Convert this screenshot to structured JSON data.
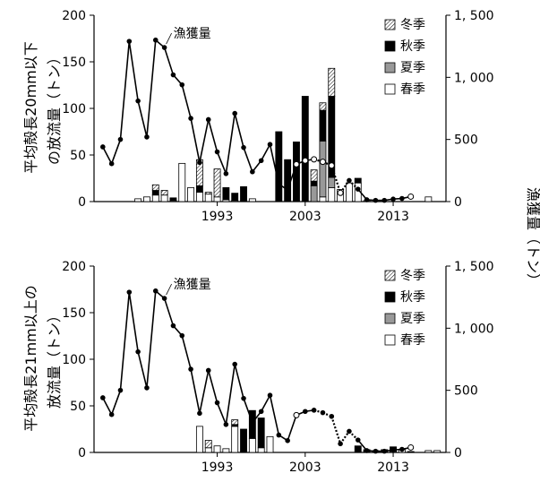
{
  "right_axis_label": "漁獲量（トン）",
  "legend": {
    "winter": "冬季",
    "autumn": "秋季",
    "summer": "夏季",
    "spring": "春季"
  },
  "colors": {
    "winter": "hatched",
    "autumn": "#000000",
    "summer": "#999999",
    "spring": "#ffffff",
    "line": "#000000"
  },
  "chart_data": [
    {
      "type": "bar+line",
      "ylabel_lines": [
        "平均殻長20mm以下",
        "の放流量（トン）"
      ],
      "y2label": "漁獲量（トン）",
      "line_label": "漁獲量",
      "xticks": [
        "1993",
        "2003",
        "2013"
      ],
      "yticks": [
        "0",
        "50",
        "100",
        "150",
        "200"
      ],
      "y2ticks": [
        "0",
        "500",
        "1, 000",
        "1, 500"
      ],
      "ylim": [
        0,
        200
      ],
      "y2lim": [
        0,
        1500
      ],
      "stacked": true,
      "bars": [
        {
          "year": 1984,
          "spring": 3
        },
        {
          "year": 1985,
          "spring": 5
        },
        {
          "year": 1986,
          "spring": 7,
          "autumn": 5,
          "winter": 6
        },
        {
          "year": 1987,
          "spring": 7,
          "winter": 5
        },
        {
          "year": 1988,
          "spring": 1,
          "autumn": 3
        },
        {
          "year": 1989,
          "spring": 41
        },
        {
          "year": 1990,
          "spring": 15
        },
        {
          "year": 1991,
          "spring": 10,
          "autumn": 7,
          "winter": 28
        },
        {
          "year": 1992,
          "spring": 8,
          "winter": 2
        },
        {
          "year": 1993,
          "spring": 5,
          "winter": 30
        },
        {
          "year": 1994,
          "spring": 2,
          "autumn": 13
        },
        {
          "year": 1995,
          "spring": 1,
          "autumn": 8
        },
        {
          "year": 1996,
          "autumn": 16
        },
        {
          "year": 1997,
          "spring": 3
        },
        {
          "year": 2000,
          "autumn": 75
        },
        {
          "year": 2001,
          "autumn": 45
        },
        {
          "year": 2002,
          "autumn": 64
        },
        {
          "year": 2003,
          "autumn": 113
        },
        {
          "year": 2004,
          "summer": 17,
          "autumn": 5,
          "winter": 12
        },
        {
          "year": 2005,
          "spring": 5,
          "summer": 60,
          "autumn": 33,
          "winter": 8
        },
        {
          "year": 2006,
          "spring": 15,
          "summer": 11,
          "autumn": 87,
          "winter": 30
        },
        {
          "year": 2007,
          "spring": 13
        },
        {
          "year": 2008,
          "spring": 20
        },
        {
          "year": 2009,
          "spring": 20,
          "autumn": 5
        },
        {
          "year": 2010,
          "spring": 1
        },
        {
          "year": 2017,
          "spring": 5
        }
      ],
      "catch_points": [
        {
          "year": 1980,
          "value": 440
        },
        {
          "year": 1981,
          "value": 305
        },
        {
          "year": 1982,
          "value": 500
        },
        {
          "year": 1983,
          "value": 1290
        },
        {
          "year": 1984,
          "value": 810
        },
        {
          "year": 1985,
          "value": 520
        },
        {
          "year": 1986,
          "value": 1300
        },
        {
          "year": 1987,
          "value": 1240
        },
        {
          "year": 1988,
          "value": 1020
        },
        {
          "year": 1989,
          "value": 940
        },
        {
          "year": 1990,
          "value": 670
        },
        {
          "year": 1991,
          "value": 315
        },
        {
          "year": 1992,
          "value": 660
        },
        {
          "year": 1993,
          "value": 400
        },
        {
          "year": 1994,
          "value": 225
        },
        {
          "year": 1995,
          "value": 710
        },
        {
          "year": 1996,
          "value": 435
        },
        {
          "year": 1997,
          "value": 240
        },
        {
          "year": 1998,
          "value": 330
        },
        {
          "year": 1999,
          "value": 460
        },
        {
          "year": 2000,
          "value": 140
        },
        {
          "year": 2001,
          "value": 95
        },
        {
          "year": 2002,
          "value": 300
        },
        {
          "year": 2003,
          "value": 330
        },
        {
          "year": 2004,
          "value": 340
        },
        {
          "year": 2005,
          "value": 320
        },
        {
          "year": 2006,
          "value": 290
        },
        {
          "year": 2007,
          "value": 70
        },
        {
          "year": 2008,
          "value": 170
        },
        {
          "year": 2009,
          "value": 100
        },
        {
          "year": 2010,
          "value": 15
        },
        {
          "year": 2011,
          "value": 10
        },
        {
          "year": 2012,
          "value": 10
        },
        {
          "year": 2013,
          "value": 20
        },
        {
          "year": 2014,
          "value": 25
        },
        {
          "year": 2015,
          "value": 40
        }
      ],
      "dotted_segment_years": [
        2004,
        2009
      ],
      "open_markers": [
        2002,
        2003,
        2004,
        2005,
        2006,
        2007,
        2015
      ]
    },
    {
      "type": "bar+line",
      "ylabel_lines": [
        "平均殻長21mm以上の",
        "放流量（トン）"
      ],
      "y2label": "漁獲量（トン）",
      "line_label": "漁獲量",
      "xticks": [
        "1993",
        "2003",
        "2013"
      ],
      "yticks": [
        "0",
        "50",
        "100",
        "150",
        "200"
      ],
      "y2ticks": [
        "0",
        "500",
        "1, 000",
        "1, 500"
      ],
      "ylim": [
        0,
        200
      ],
      "y2lim": [
        0,
        1500
      ],
      "stacked": true,
      "bars": [
        {
          "year": 1991,
          "spring": 28
        },
        {
          "year": 1992,
          "spring": 5,
          "winter": 8
        },
        {
          "year": 1993,
          "spring": 7
        },
        {
          "year": 1994,
          "spring": 4
        },
        {
          "year": 1995,
          "spring": 28,
          "autumn": 2,
          "winter": 5
        },
        {
          "year": 1996,
          "autumn": 25
        },
        {
          "year": 1997,
          "spring": 15,
          "autumn": 30
        },
        {
          "year": 1998,
          "spring": 5,
          "autumn": 32
        },
        {
          "year": 1999,
          "spring": 17
        },
        {
          "year": 2009,
          "autumn": 7
        },
        {
          "year": 2010,
          "autumn": 3
        },
        {
          "year": 2011,
          "autumn": 2
        },
        {
          "year": 2012,
          "autumn": 3
        },
        {
          "year": 2013,
          "spring": 1,
          "autumn": 5
        },
        {
          "year": 2014,
          "spring": 3
        },
        {
          "year": 2015,
          "autumn": 1
        },
        {
          "year": 2017,
          "spring": 2
        },
        {
          "year": 2018,
          "spring": 2
        }
      ],
      "catch_points": [
        {
          "year": 1980,
          "value": 440
        },
        {
          "year": 1981,
          "value": 305
        },
        {
          "year": 1982,
          "value": 500
        },
        {
          "year": 1983,
          "value": 1290
        },
        {
          "year": 1984,
          "value": 810
        },
        {
          "year": 1985,
          "value": 520
        },
        {
          "year": 1986,
          "value": 1300
        },
        {
          "year": 1987,
          "value": 1240
        },
        {
          "year": 1988,
          "value": 1020
        },
        {
          "year": 1989,
          "value": 940
        },
        {
          "year": 1990,
          "value": 670
        },
        {
          "year": 1991,
          "value": 315
        },
        {
          "year": 1992,
          "value": 660
        },
        {
          "year": 1993,
          "value": 400
        },
        {
          "year": 1994,
          "value": 225
        },
        {
          "year": 1995,
          "value": 710
        },
        {
          "year": 1996,
          "value": 435
        },
        {
          "year": 1997,
          "value": 240
        },
        {
          "year": 1998,
          "value": 330
        },
        {
          "year": 1999,
          "value": 460
        },
        {
          "year": 2000,
          "value": 140
        },
        {
          "year": 2001,
          "value": 95
        },
        {
          "year": 2002,
          "value": 300
        },
        {
          "year": 2003,
          "value": 330
        },
        {
          "year": 2004,
          "value": 340
        },
        {
          "year": 2005,
          "value": 320
        },
        {
          "year": 2006,
          "value": 290
        },
        {
          "year": 2007,
          "value": 70
        },
        {
          "year": 2008,
          "value": 170
        },
        {
          "year": 2009,
          "value": 100
        },
        {
          "year": 2010,
          "value": 15
        },
        {
          "year": 2011,
          "value": 10
        },
        {
          "year": 2012,
          "value": 10
        },
        {
          "year": 2013,
          "value": 20
        },
        {
          "year": 2014,
          "value": 25
        },
        {
          "year": 2015,
          "value": 40
        }
      ],
      "dotted_segment_years": [
        2004,
        2009
      ],
      "open_markers": [
        2002,
        2015
      ]
    }
  ]
}
